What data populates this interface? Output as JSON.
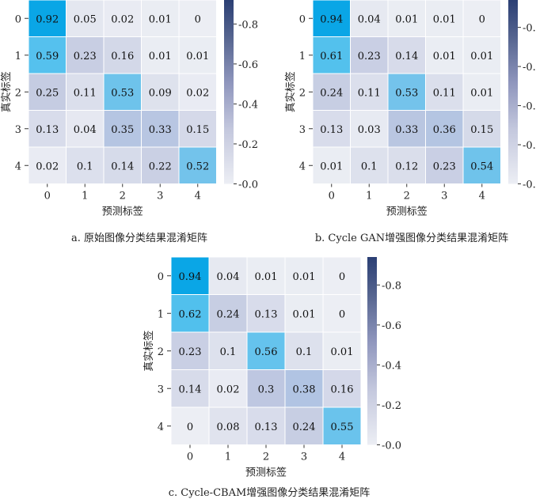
{
  "colors": {
    "cmap_low": "#eceef4",
    "cmap_mid": "#aac2e4",
    "cmap_cyan": "#59c3ee",
    "cmap_peak": "#0aa6e6",
    "colorbar_top": "#2b3f74"
  },
  "chart_data": [
    {
      "type": "heatmap",
      "caption": "a. 原始图像分类结果混淆矩阵",
      "xlabel": "预测标签",
      "ylabel": "真实标签",
      "x_ticks": [
        "0",
        "1",
        "2",
        "3",
        "4"
      ],
      "y_ticks": [
        "0",
        "1",
        "2",
        "3",
        "4"
      ],
      "values": [
        [
          0.92,
          0.05,
          0.02,
          0.01,
          0.0
        ],
        [
          0.59,
          0.23,
          0.16,
          0.01,
          0.01
        ],
        [
          0.25,
          0.11,
          0.53,
          0.09,
          0.02
        ],
        [
          0.13,
          0.04,
          0.35,
          0.33,
          0.15
        ],
        [
          0.02,
          0.1,
          0.14,
          0.22,
          0.52
        ]
      ],
      "colorbar_range": [
        0.0,
        0.92
      ],
      "colorbar_ticks": [
        "0.0",
        "0.2",
        "0.4",
        "0.6",
        "0.8"
      ]
    },
    {
      "type": "heatmap",
      "caption": "b. Cycle GAN增强图像分类结果混淆矩阵",
      "xlabel": "预测标签",
      "ylabel": "真实标签",
      "x_ticks": [
        "0",
        "1",
        "2",
        "3",
        "4"
      ],
      "y_ticks": [
        "0",
        "1",
        "2",
        "3",
        "4"
      ],
      "values": [
        [
          0.94,
          0.04,
          0.01,
          0.01,
          0.0
        ],
        [
          0.61,
          0.23,
          0.14,
          0.01,
          0.01
        ],
        [
          0.24,
          0.11,
          0.53,
          0.11,
          0.01
        ],
        [
          0.13,
          0.03,
          0.33,
          0.36,
          0.15
        ],
        [
          0.01,
          0.1,
          0.12,
          0.23,
          0.54
        ]
      ],
      "colorbar_range": [
        0.0,
        0.94
      ],
      "colorbar_ticks": [
        "0.0",
        "0.2",
        "0.4",
        "0.6",
        "0.8"
      ]
    },
    {
      "type": "heatmap",
      "caption": "c. Cycle-CBAM增强图像分类结果混淆矩阵",
      "xlabel": "预测标签",
      "ylabel": "真实标签",
      "x_ticks": [
        "0",
        "1",
        "2",
        "3",
        "4"
      ],
      "y_ticks": [
        "0",
        "1",
        "2",
        "3",
        "4"
      ],
      "values": [
        [
          0.94,
          0.04,
          0.01,
          0.01,
          0.0
        ],
        [
          0.62,
          0.24,
          0.13,
          0.01,
          0.0
        ],
        [
          0.23,
          0.1,
          0.56,
          0.1,
          0.01
        ],
        [
          0.14,
          0.02,
          0.3,
          0.38,
          0.16
        ],
        [
          0.0,
          0.08,
          0.13,
          0.24,
          0.55
        ]
      ],
      "colorbar_range": [
        0.0,
        0.94
      ],
      "colorbar_ticks": [
        "0.0",
        "0.2",
        "0.4",
        "0.6",
        "0.8"
      ]
    }
  ]
}
